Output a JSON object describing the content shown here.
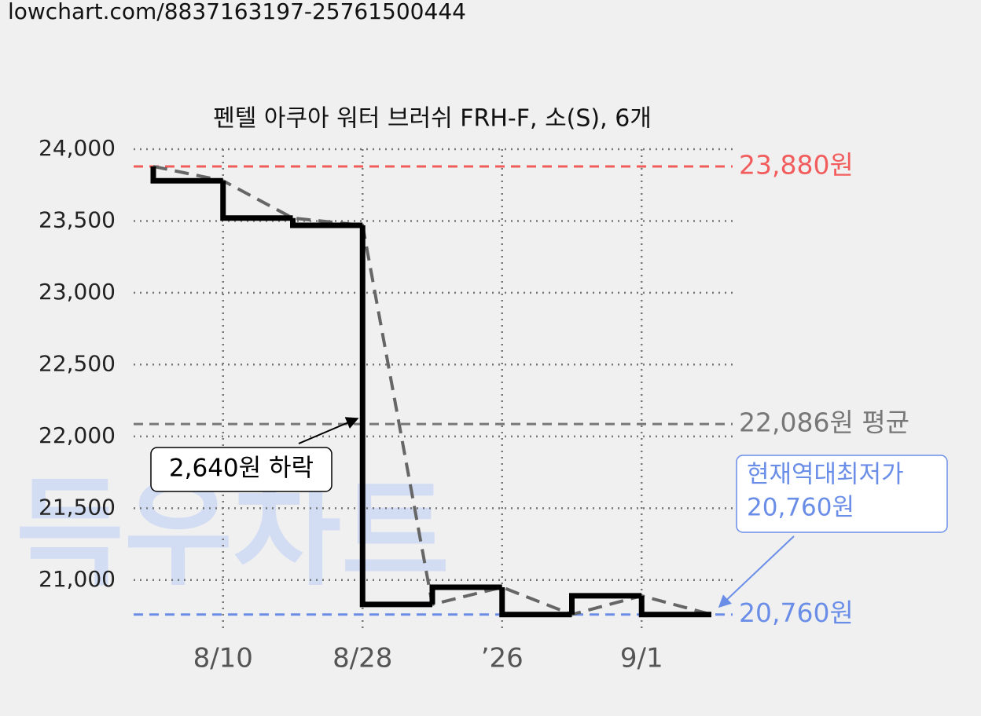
{
  "source_url": "lowchart.com/8837163197-25761500444",
  "watermark": "득우차트",
  "chart_data": {
    "type": "line",
    "title": "펜텔 아쿠아 워터 브러쉬 FRH-F, 소(S), 6개",
    "categories": [
      null,
      "8/10",
      null,
      "8/28",
      null,
      "’26",
      null,
      "9/1",
      null
    ],
    "values": [
      23880,
      23780,
      23520,
      23470,
      20830,
      20950,
      20760,
      20890,
      20760
    ],
    "step_color": "#000000",
    "trend_color": "#666666",
    "ylim": [
      20660,
      24000
    ],
    "yticks": [
      {
        "value": 21000,
        "label": "21,000"
      },
      {
        "value": 21500,
        "label": "21,500"
      },
      {
        "value": 22000,
        "label": "22,000"
      },
      {
        "value": 22500,
        "label": "22,500"
      },
      {
        "value": 23000,
        "label": "23,000"
      },
      {
        "value": 23500,
        "label": "23,500"
      },
      {
        "value": 24000,
        "label": "24,000"
      }
    ],
    "grid": true,
    "reference_lines": [
      {
        "value": 23880,
        "label": "23,880원",
        "color": "#f25c5c"
      },
      {
        "value": 22086,
        "label": "22,086원 평균",
        "color": "#777777"
      },
      {
        "value": 20760,
        "label": "20,760원",
        "color": "#6a8ee8"
      }
    ],
    "annotations": [
      {
        "lines": [
          "2,640원 하락"
        ],
        "color": "#000000"
      },
      {
        "lines": [
          "현재역대최저가",
          "20,760원"
        ],
        "color": "#6a8ee8"
      }
    ]
  }
}
